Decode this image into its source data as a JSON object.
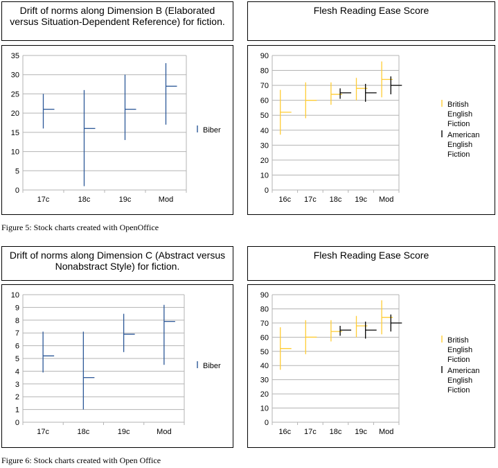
{
  "figures": [
    {
      "caption": "Figure 5: Stock charts created with OpenOffice",
      "left": {
        "title": "Drift of norms along Dimension B (Elaborated versus Situation-Dependent Reference) for fiction."
      },
      "right": {
        "title": "Flesh Reading Ease Score"
      }
    },
    {
      "caption": "Figure 6: Stock charts created with Open Office",
      "left": {
        "title": "Drift of norms along Dimension C (Abstract versus Nonabstract Style) for fiction."
      },
      "right": {
        "title": "Flesh Reading Ease Score"
      }
    }
  ],
  "chart_data": [
    {
      "type": "stock",
      "title": "Drift of norms along Dimension B (Elaborated versus Situation-Dependent Reference) for fiction.",
      "categories": [
        "17c",
        "18c",
        "19c",
        "Mod"
      ],
      "ylim": [
        0,
        35
      ],
      "ystep": 5,
      "grid": true,
      "legend_position": "right",
      "color": "#2b5797",
      "series": [
        {
          "name": "Biber",
          "low": [
            16,
            1,
            13,
            17
          ],
          "high": [
            25,
            26,
            30,
            33
          ],
          "close": [
            21,
            16,
            21,
            27
          ]
        }
      ]
    },
    {
      "type": "stock",
      "title": "Flesh Reading Ease Score",
      "categories": [
        "16c",
        "17c",
        "18c",
        "19c",
        "Mod"
      ],
      "ylim": [
        0,
        90
      ],
      "ystep": 10,
      "grid": true,
      "legend_position": "right",
      "series": [
        {
          "name": "British English Fiction",
          "color": "#ffcc33",
          "low": [
            37,
            48,
            57,
            60,
            62
          ],
          "high": [
            67,
            72,
            72,
            75,
            86
          ],
          "close": [
            52,
            60,
            64,
            68,
            74
          ]
        },
        {
          "name": "American English Fiction",
          "color": "#000000",
          "low": [
            null,
            null,
            61,
            59,
            64
          ],
          "high": [
            null,
            null,
            68,
            71,
            76
          ],
          "close": [
            null,
            null,
            65,
            65,
            70
          ]
        }
      ]
    },
    {
      "type": "stock",
      "title": "Drift of norms along Dimension C (Abstract versus Nonabstract Style) for fiction.",
      "categories": [
        "17c",
        "18c",
        "19c",
        "Mod"
      ],
      "ylim": [
        0,
        10
      ],
      "ystep": 1,
      "grid": true,
      "legend_position": "right",
      "color": "#2b5797",
      "series": [
        {
          "name": "Biber",
          "low": [
            3.9,
            1.0,
            5.5,
            4.5
          ],
          "high": [
            7.1,
            7.1,
            8.5,
            9.2
          ],
          "close": [
            5.2,
            3.5,
            6.9,
            7.9
          ]
        }
      ]
    },
    {
      "type": "stock",
      "title": "Flesh Reading Ease Score",
      "categories": [
        "16c",
        "17c",
        "18c",
        "19c",
        "Mod"
      ],
      "ylim": [
        0,
        90
      ],
      "ystep": 10,
      "grid": true,
      "legend_position": "right",
      "series": [
        {
          "name": "British English Fiction",
          "color": "#ffcc33",
          "low": [
            37,
            48,
            57,
            60,
            62
          ],
          "high": [
            67,
            72,
            72,
            75,
            86
          ],
          "close": [
            52,
            60,
            64,
            68,
            74
          ]
        },
        {
          "name": "American English Fiction",
          "color": "#000000",
          "low": [
            null,
            null,
            61,
            59,
            64
          ],
          "high": [
            null,
            null,
            68,
            71,
            76
          ],
          "close": [
            null,
            null,
            65,
            65,
            70
          ]
        }
      ]
    }
  ]
}
